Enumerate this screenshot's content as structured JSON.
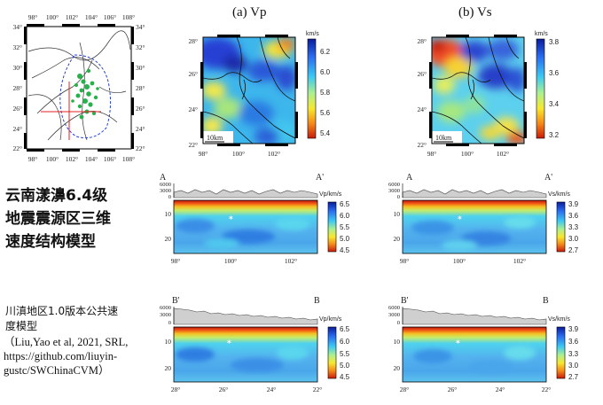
{
  "titles": {
    "vp": "(a) Vp",
    "vs": "(b) Vs"
  },
  "caption": {
    "main_lines": [
      "云南漾濞6.4级",
      "地震震源区三维",
      "速度结构模型"
    ],
    "model_lines": [
      "川滇地区1.0版本公共速",
      "度模型"
    ],
    "ref_lines": [
      "（Liu,Yao et al, 2021, SRL,",
      "https://github.com/liuyin-",
      "gustc/SWChinaCVM）"
    ]
  },
  "overview_map": {
    "lat_ticks": [
      "34°",
      "32°",
      "30°",
      "28°",
      "26°",
      "24°",
      "22°"
    ],
    "lon_ticks": [
      "98°",
      "100°",
      "102°",
      "104°",
      "106°",
      "108°"
    ]
  },
  "maps": {
    "lat_ticks": [
      "28°",
      "26°",
      "24°",
      "22°"
    ],
    "lon_ticks": [
      "98°",
      "100°",
      "102°"
    ],
    "scale_label": "10km"
  },
  "colorbars": {
    "vp_map": {
      "unit": "km/s",
      "ticks": [
        "6.2",
        "6.0",
        "5.8",
        "5.6",
        "5.4"
      ]
    },
    "vs_map": {
      "unit": "km/s",
      "ticks": [
        "3.8",
        "3.6",
        "3.4",
        "3.2"
      ]
    },
    "vp_section": {
      "unit": "Vp/km/s",
      "ticks": [
        "6.5",
        "6.0",
        "5.5",
        "5.0",
        "4.5"
      ]
    },
    "vs_section": {
      "unit": "Vs/km/s",
      "ticks": [
        "3.9",
        "3.6",
        "3.3",
        "3.0",
        "2.7"
      ]
    }
  },
  "sections": {
    "aa": {
      "start": "A",
      "end": "A'",
      "x_ticks": [
        "98°",
        "100°",
        "102°"
      ]
    },
    "bb": {
      "start": "B'",
      "end": "B",
      "x_ticks": [
        "28°",
        "26°",
        "24°",
        "22°"
      ]
    },
    "elev_ticks": [
      "6000",
      "3000",
      "0"
    ],
    "depth_ticks": [
      "10",
      "20"
    ]
  }
}
